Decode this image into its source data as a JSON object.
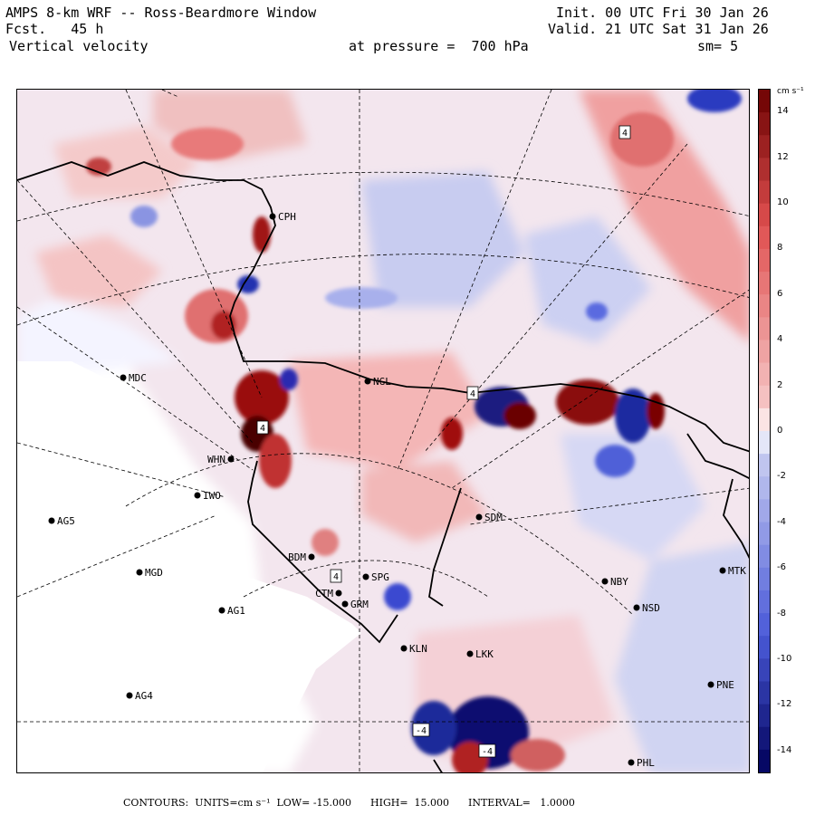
{
  "header": {
    "title": "AMPS 8-km WRF -- Ross-Beardmore Window",
    "forecast": "Fcst.   45 h",
    "variable": "Vertical velocity",
    "level": "at pressure =  700 hPa",
    "init": "Init. 00 UTC Fri 30 Jan 26",
    "valid": "Valid. 21 UTC Sat 31 Jan 26",
    "smoothing": "sm= 5"
  },
  "colorbar": {
    "units_label": "cm s⁻¹",
    "min": -15,
    "max": 15,
    "ticks": [
      {
        "value": 14,
        "label": "14"
      },
      {
        "value": 12,
        "label": "12"
      },
      {
        "value": 10,
        "label": "10"
      },
      {
        "value": 8,
        "label": "8"
      },
      {
        "value": 6,
        "label": "6"
      },
      {
        "value": 4,
        "label": "4"
      },
      {
        "value": 2,
        "label": "2"
      },
      {
        "value": 0,
        "label": "0"
      },
      {
        "value": -2,
        "label": "-2"
      },
      {
        "value": -4,
        "label": "-4"
      },
      {
        "value": -6,
        "label": "-6"
      },
      {
        "value": -8,
        "label": "-8"
      },
      {
        "value": -10,
        "label": "-10"
      },
      {
        "value": -12,
        "label": "-12"
      },
      {
        "value": -14,
        "label": "-14"
      }
    ],
    "colors": {
      "strong_positive": "#6b0000",
      "positive": "#e05050",
      "weak_positive": "#f6c8c8",
      "neutral": "#ffffff",
      "weak_negative": "#c8ccf0",
      "negative": "#4a5ad8",
      "strong_negative": "#00005a"
    }
  },
  "stations": [
    {
      "id": "MDC",
      "label": "MDC"
    },
    {
      "id": "NGL",
      "label": "NGL"
    },
    {
      "id": "WHN",
      "label": "WHN"
    },
    {
      "id": "IWO",
      "label": "IWO"
    },
    {
      "id": "AG5",
      "label": "AG5"
    },
    {
      "id": "SDM",
      "label": "SDM"
    },
    {
      "id": "BDM",
      "label": "BDM"
    },
    {
      "id": "MGD",
      "label": "MGD"
    },
    {
      "id": "CTM",
      "label": "CTM"
    },
    {
      "id": "SPG",
      "label": "SPG"
    },
    {
      "id": "GRM",
      "label": "GRM"
    },
    {
      "id": "AG1",
      "label": "AG1"
    },
    {
      "id": "NBY",
      "label": "NBY"
    },
    {
      "id": "MTK",
      "label": "MTK"
    },
    {
      "id": "NSD",
      "label": "NSD"
    },
    {
      "id": "KLN",
      "label": "KLN"
    },
    {
      "id": "LKK",
      "label": "LKK"
    },
    {
      "id": "AG4",
      "label": "AG4"
    },
    {
      "id": "PNE",
      "label": "PNE"
    },
    {
      "id": "PHL",
      "label": "PHL"
    },
    {
      "id": "CPH",
      "label": "CPH"
    }
  ],
  "contour_labels": [
    "4",
    "4",
    "4",
    "4",
    "-4",
    "-4"
  ],
  "footer": {
    "text": "CONTOURS:  UNITS=cm s⁻¹  LOW= -15.000      HIGH=  15.000      INTERVAL=   1.0000"
  }
}
